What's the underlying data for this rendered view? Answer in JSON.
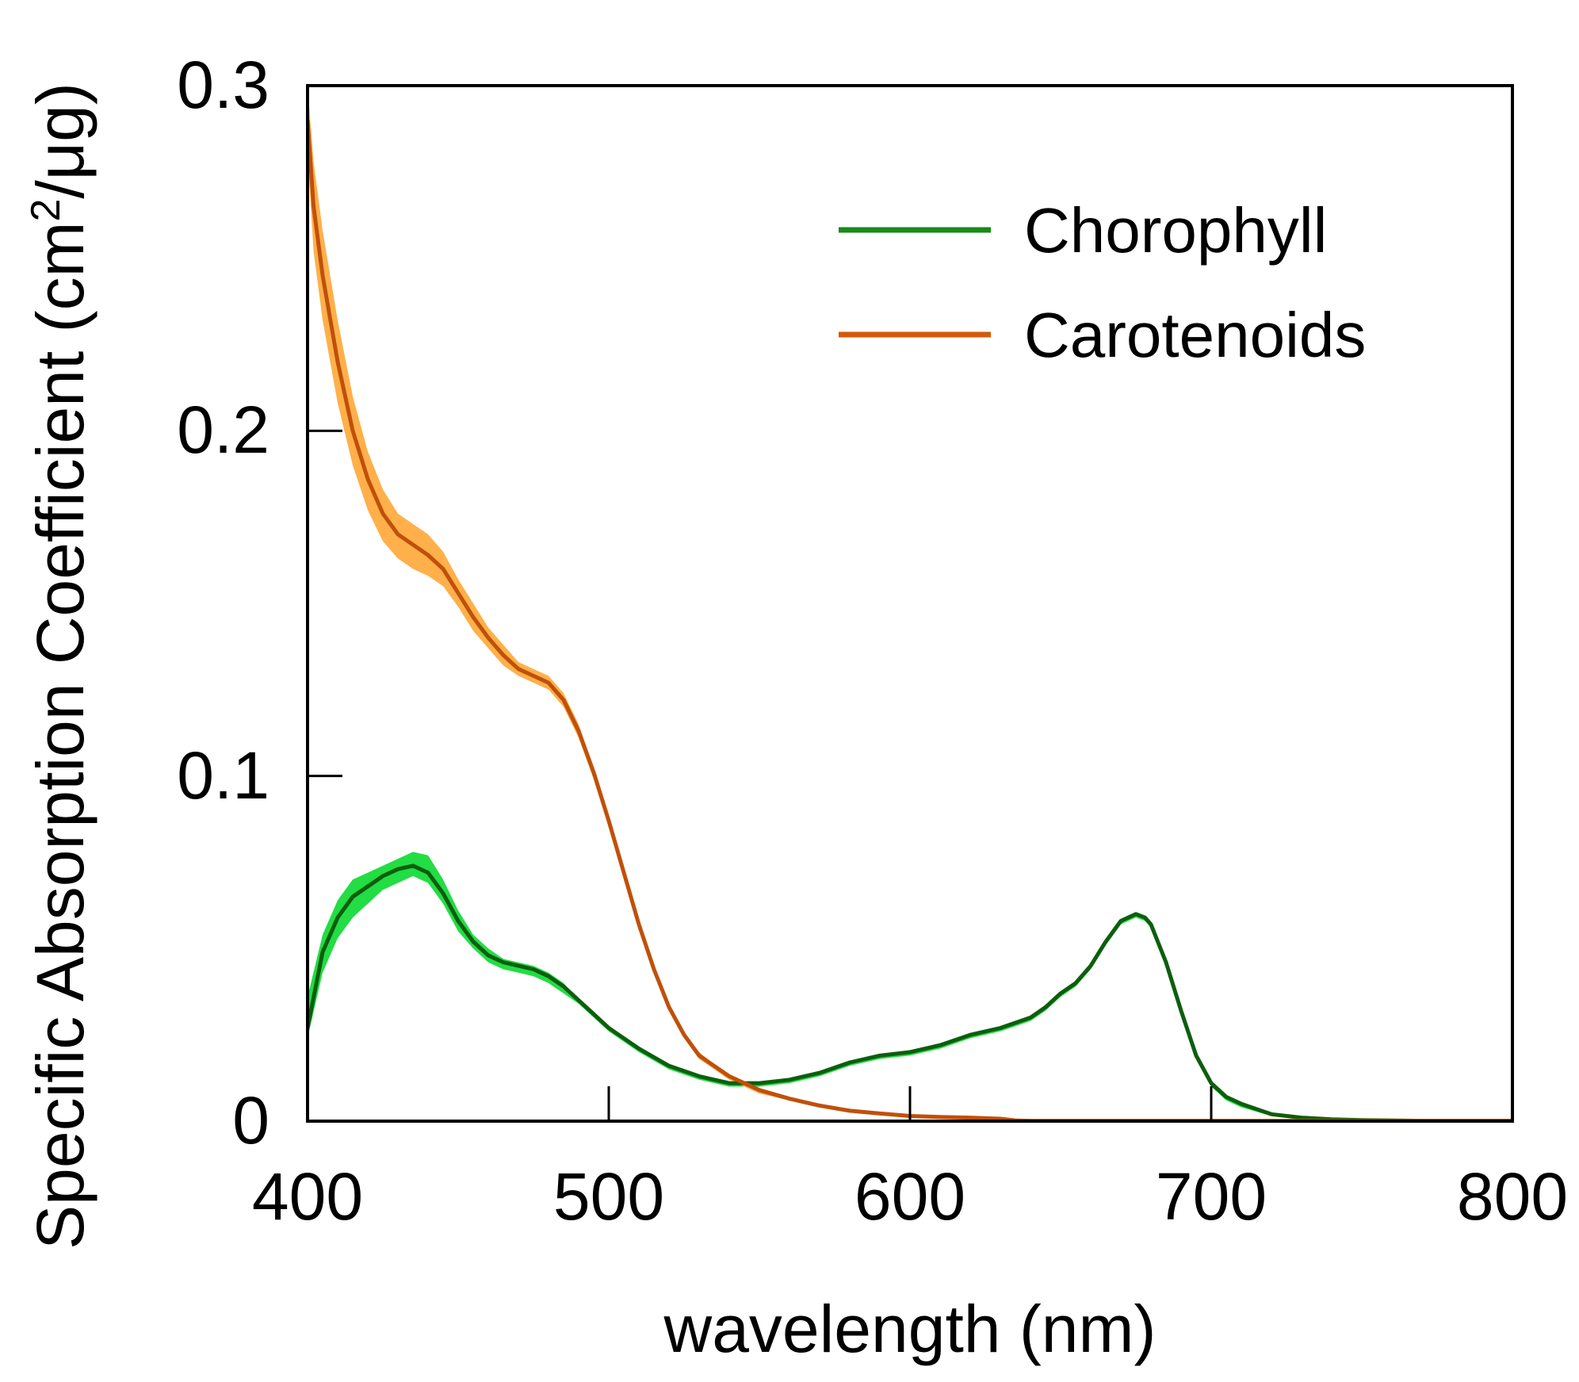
{
  "chart_data": {
    "type": "line",
    "title": "",
    "xlabel": "wavelength (nm)",
    "ylabel_main": "Specific Absorption Coefficient (cm",
    "ylabel_sup": "2",
    "ylabel_tail": "/μg)",
    "xlim": [
      400,
      800
    ],
    "ylim": [
      0,
      0.3
    ],
    "xticks": [
      400,
      500,
      600,
      700,
      800
    ],
    "xtick_labels": [
      "400",
      "500",
      "600",
      "700",
      "800"
    ],
    "yticks": [
      0,
      0.1,
      0.2,
      0.3
    ],
    "ytick_labels": [
      "0",
      "0.1",
      "0.2",
      "0.3"
    ],
    "legend_position": "top-right",
    "series": [
      {
        "name": "Chorophyll",
        "color": "#188a18",
        "line_color": "#0d5e0d",
        "band_color": "#22dd44",
        "x": [
          400,
          405,
          410,
          415,
          420,
          425,
          430,
          435,
          440,
          445,
          450,
          455,
          460,
          465,
          470,
          475,
          480,
          485,
          490,
          495,
          500,
          510,
          520,
          530,
          540,
          550,
          560,
          570,
          580,
          590,
          600,
          610,
          620,
          630,
          640,
          645,
          650,
          655,
          660,
          665,
          670,
          675,
          678,
          680,
          685,
          690,
          695,
          700,
          705,
          710,
          720,
          730,
          740,
          750,
          760,
          770,
          780,
          790,
          800
        ],
        "values": [
          0.027,
          0.049,
          0.059,
          0.065,
          0.068,
          0.071,
          0.073,
          0.074,
          0.072,
          0.066,
          0.058,
          0.052,
          0.048,
          0.046,
          0.045,
          0.044,
          0.042,
          0.039,
          0.035,
          0.031,
          0.027,
          0.021,
          0.016,
          0.013,
          0.011,
          0.011,
          0.012,
          0.014,
          0.017,
          0.019,
          0.02,
          0.022,
          0.025,
          0.027,
          0.03,
          0.033,
          0.037,
          0.04,
          0.045,
          0.052,
          0.058,
          0.06,
          0.059,
          0.057,
          0.046,
          0.032,
          0.019,
          0.011,
          0.007,
          0.005,
          0.002,
          0.001,
          0.0005,
          0.0003,
          0.0002,
          0.0001,
          0.0001,
          0.0001,
          0.0001
        ],
        "band_upper": [
          0.036,
          0.054,
          0.064,
          0.07,
          0.072,
          0.074,
          0.076,
          0.078,
          0.077,
          0.07,
          0.061,
          0.054,
          0.05,
          0.047,
          0.046,
          0.045,
          0.043,
          0.04,
          0.035,
          0.031,
          0.027,
          0.021,
          0.016,
          0.013,
          0.011,
          0.011,
          0.012,
          0.014,
          0.017,
          0.019,
          0.02,
          0.022,
          0.025,
          0.027,
          0.03,
          0.033,
          0.037,
          0.04,
          0.045,
          0.052,
          0.058,
          0.06,
          0.059,
          0.057,
          0.046,
          0.032,
          0.019,
          0.011,
          0.007,
          0.005,
          0.002,
          0.001,
          0.0005,
          0.0003,
          0.0002,
          0.0001,
          0.0001,
          0.0001,
          0.0001
        ],
        "band_lower": [
          0.024,
          0.043,
          0.053,
          0.059,
          0.063,
          0.067,
          0.069,
          0.071,
          0.069,
          0.063,
          0.055,
          0.05,
          0.046,
          0.044,
          0.043,
          0.042,
          0.04,
          0.037,
          0.034,
          0.03,
          0.026,
          0.02,
          0.015,
          0.012,
          0.01,
          0.01,
          0.011,
          0.013,
          0.016,
          0.018,
          0.019,
          0.021,
          0.024,
          0.026,
          0.029,
          0.032,
          0.036,
          0.039,
          0.044,
          0.051,
          0.057,
          0.059,
          0.058,
          0.056,
          0.045,
          0.031,
          0.018,
          0.01,
          0.006,
          0.004,
          0.0015,
          0.0008,
          0.0004,
          0.0002,
          0.0001,
          0.0001,
          0.0001,
          0.0001,
          0.0001
        ]
      },
      {
        "name": "Carotenoids",
        "color": "#d45a0a",
        "line_color": "#c0500a",
        "band_color": "#ffb04a",
        "x": [
          400,
          402,
          405,
          410,
          415,
          420,
          425,
          430,
          435,
          440,
          445,
          450,
          455,
          460,
          465,
          470,
          475,
          480,
          485,
          490,
          495,
          500,
          505,
          510,
          515,
          520,
          525,
          530,
          540,
          550,
          560,
          570,
          580,
          590,
          600,
          610,
          620,
          630,
          635,
          640,
          650,
          700,
          750,
          800
        ],
        "values": [
          0.29,
          0.265,
          0.245,
          0.22,
          0.2,
          0.186,
          0.176,
          0.17,
          0.167,
          0.164,
          0.16,
          0.153,
          0.146,
          0.14,
          0.135,
          0.131,
          0.129,
          0.127,
          0.122,
          0.113,
          0.101,
          0.087,
          0.072,
          0.057,
          0.044,
          0.033,
          0.025,
          0.019,
          0.013,
          0.009,
          0.0065,
          0.0045,
          0.003,
          0.0022,
          0.0015,
          0.0012,
          0.001,
          0.0007,
          0.0002,
          0.0001,
          0.0001,
          0.0001,
          0.0001,
          0.0001
        ],
        "band_upper": [
          0.3,
          0.278,
          0.258,
          0.232,
          0.21,
          0.194,
          0.183,
          0.176,
          0.173,
          0.17,
          0.165,
          0.157,
          0.15,
          0.143,
          0.138,
          0.133,
          0.131,
          0.129,
          0.124,
          0.115,
          0.102,
          0.088,
          0.073,
          0.058,
          0.045,
          0.034,
          0.026,
          0.02,
          0.013,
          0.009,
          0.0065,
          0.0045,
          0.003,
          0.0022,
          0.0015,
          0.0012,
          0.001,
          0.0007,
          0.0002,
          0.0001,
          0.0001,
          0.0001,
          0.0001,
          0.0001
        ],
        "band_lower": [
          0.28,
          0.252,
          0.232,
          0.208,
          0.19,
          0.177,
          0.168,
          0.163,
          0.16,
          0.158,
          0.155,
          0.149,
          0.142,
          0.137,
          0.132,
          0.129,
          0.127,
          0.125,
          0.12,
          0.111,
          0.099,
          0.085,
          0.07,
          0.056,
          0.043,
          0.032,
          0.024,
          0.018,
          0.012,
          0.008,
          0.006,
          0.004,
          0.0028,
          0.002,
          0.0014,
          0.0011,
          0.0009,
          0.0006,
          0.0002,
          0.0001,
          0.0001,
          0.0001,
          0.0001,
          0.0001
        ]
      }
    ]
  }
}
